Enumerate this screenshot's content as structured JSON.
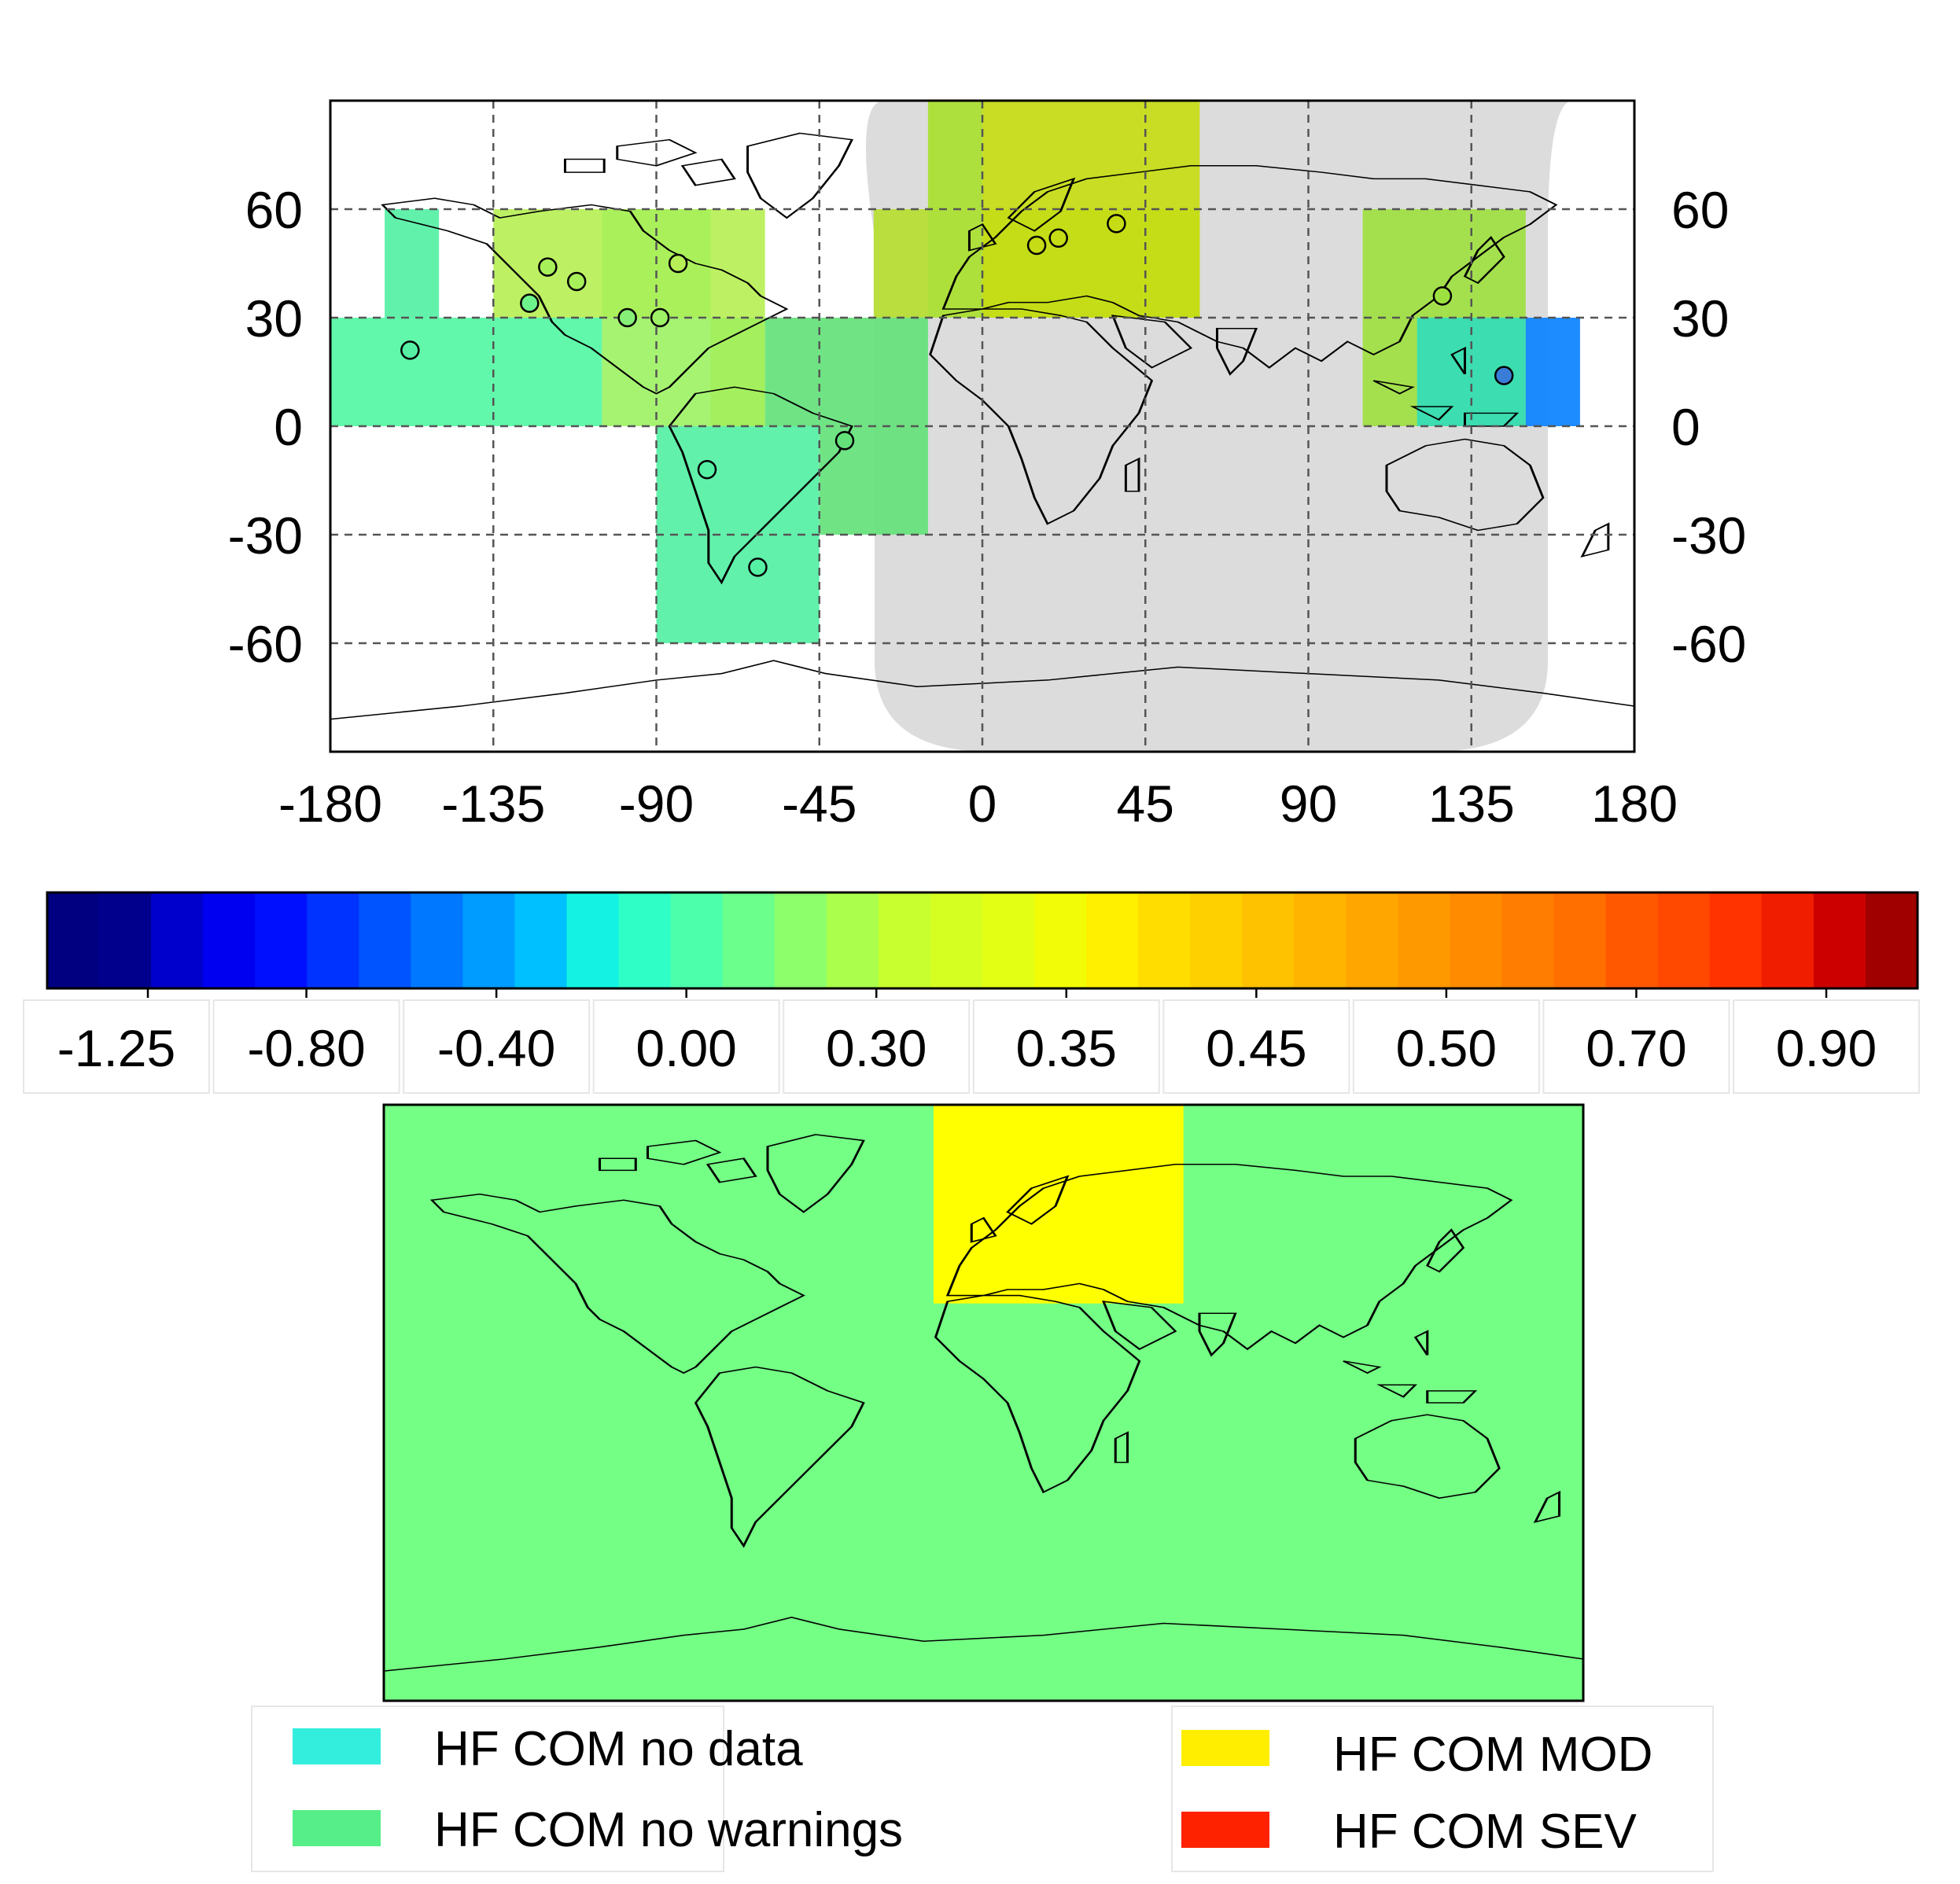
{
  "colors": {
    "night": "#dcdcdc",
    "coast": "#000000",
    "grid": "#555555",
    "lower_map_bg": "#74ff85"
  },
  "top_map": {
    "lat_ticks_left": [
      "60",
      "30",
      "0",
      "-30",
      "-60"
    ],
    "lat_ticks_right": [
      "60",
      "30",
      "0",
      "-30",
      "-60"
    ],
    "lat_tick_values": [
      60,
      30,
      0,
      -30,
      -60
    ],
    "lon_ticks": [
      "-180",
      "-135",
      "-90",
      "-45",
      "0",
      "45",
      "90",
      "135",
      "180"
    ],
    "lon_tick_values": [
      -180,
      -135,
      -90,
      -45,
      0,
      45,
      90,
      135,
      180
    ],
    "regions": [
      {
        "name": "alaska-cell",
        "lon": [
          -165,
          -150
        ],
        "lat": [
          30,
          60
        ],
        "color": "#55f0a4"
      },
      {
        "name": "north-america-cell",
        "lon": [
          -135,
          -60
        ],
        "lat": [
          30,
          60
        ],
        "color": "#b7f056"
      },
      {
        "name": "north-america-mid-cell",
        "lon": [
          -105,
          -75
        ],
        "lat": [
          30,
          60
        ],
        "color": "#a8f05a"
      },
      {
        "name": "pacific-north-cell",
        "lon": [
          -180,
          -105
        ],
        "lat": [
          0,
          30
        ],
        "color": "#55f7a4"
      },
      {
        "name": "central-america-cell",
        "lon": [
          -105,
          -60
        ],
        "lat": [
          0,
          30
        ],
        "color": "#9ef266"
      },
      {
        "name": "caribbean-cell",
        "lon": [
          -75,
          -60
        ],
        "lat": [
          0,
          30
        ],
        "color": "#a4ef5c"
      },
      {
        "name": "atlantic-north-cell",
        "lon": [
          -60,
          -15
        ],
        "lat": [
          0,
          30
        ],
        "color": "#64e27a"
      },
      {
        "name": "south-america-cell",
        "lon": [
          -90,
          -45
        ],
        "lat": [
          -60,
          0
        ],
        "color": "#55f0a4"
      },
      {
        "name": "atlantic-south-cell",
        "lon": [
          -45,
          -15
        ],
        "lat": [
          -30,
          0
        ],
        "color": "#64e27a"
      },
      {
        "name": "atlantic-high-cell",
        "lon": [
          -30,
          60
        ],
        "lat": [
          30,
          60
        ],
        "color": "#b5dd2f"
      },
      {
        "name": "europe-cell",
        "lon": [
          -15,
          60
        ],
        "lat": [
          30,
          90
        ],
        "color": "#c6dc14"
      },
      {
        "name": "west-europe-cell",
        "lon": [
          -15,
          0
        ],
        "lat": [
          30,
          90
        ],
        "color": "#abe040"
      },
      {
        "name": "east-asia-cell",
        "lon": [
          105,
          150
        ],
        "lat": [
          0,
          60
        ],
        "color": "#9ee040"
      },
      {
        "name": "west-pacific-cell",
        "lon": [
          120,
          150
        ],
        "lat": [
          0,
          30
        ],
        "color": "#33dcb8"
      },
      {
        "name": "pacific-blue-cell",
        "lon": [
          150,
          165
        ],
        "lat": [
          0,
          30
        ],
        "color": "#0a82ff"
      }
    ],
    "stations": [
      {
        "lon": -158,
        "lat": 21,
        "color": "#55f0a4"
      },
      {
        "lon": -120,
        "lat": 44,
        "color": "#a8f05a"
      },
      {
        "lon": -112,
        "lat": 40,
        "color": "#a8f05a"
      },
      {
        "lon": -125,
        "lat": 34,
        "color": "#6ef58c"
      },
      {
        "lon": -98,
        "lat": 30,
        "color": "#86ef77"
      },
      {
        "lon": -89,
        "lat": 30,
        "color": "#9ef266"
      },
      {
        "lon": -84,
        "lat": 45,
        "color": "#b7f056"
      },
      {
        "lon": -38,
        "lat": -4,
        "color": "#64e27a"
      },
      {
        "lon": -76,
        "lat": -12,
        "color": "#55f0a4"
      },
      {
        "lon": -62,
        "lat": -39,
        "color": "#55f0a4"
      },
      {
        "lon": 15,
        "lat": 50,
        "color": "#c6dc14"
      },
      {
        "lon": 21,
        "lat": 52,
        "color": "#c6dc14"
      },
      {
        "lon": 37,
        "lat": 56,
        "color": "#c6dc14"
      },
      {
        "lon": 127,
        "lat": 36,
        "color": "#9ee040"
      },
      {
        "lon": 144,
        "lat": 14,
        "color": "#3a7dd8"
      }
    ]
  },
  "colorbar": {
    "colors": [
      "#000080",
      "#00008d",
      "#0000cd",
      "#0000f1",
      "#0010ff",
      "#0033ff",
      "#0054ff",
      "#0078ff",
      "#009cff",
      "#00c0ff",
      "#14f3e3",
      "#2fffc7",
      "#4cffab",
      "#6bff8c",
      "#8cff6b",
      "#abff4c",
      "#c7ff2f",
      "#d5ff21",
      "#e3ff14",
      "#f1fc06",
      "#fff000",
      "#ffdd00",
      "#ffd000",
      "#ffc200",
      "#ffb400",
      "#ffa700",
      "#ff9900",
      "#ff8b00",
      "#ff7d00",
      "#ff6f00",
      "#ff5800",
      "#ff4800",
      "#ff3300",
      "#f11d00",
      "#cd0000",
      "#a00000"
    ],
    "labels": [
      "-1.25",
      "-0.80",
      "-0.40",
      "0.00",
      "0.30",
      "0.35",
      "0.45",
      "0.50",
      "0.70",
      "0.90"
    ]
  },
  "bottom_map": {
    "highlight": {
      "name": "hf-com-mod-region",
      "lon": [
        -15,
        60
      ],
      "lat": [
        30,
        90
      ],
      "color": "#ffff00"
    }
  },
  "legend": {
    "items": [
      {
        "label": "HF COM no data",
        "color": "#33eedd"
      },
      {
        "label": "HF COM no warnings",
        "color": "#55ee88"
      },
      {
        "label": "HF COM MOD",
        "color": "#ffee00"
      },
      {
        "label": "HF COM SEV",
        "color": "#ff2200"
      }
    ]
  }
}
